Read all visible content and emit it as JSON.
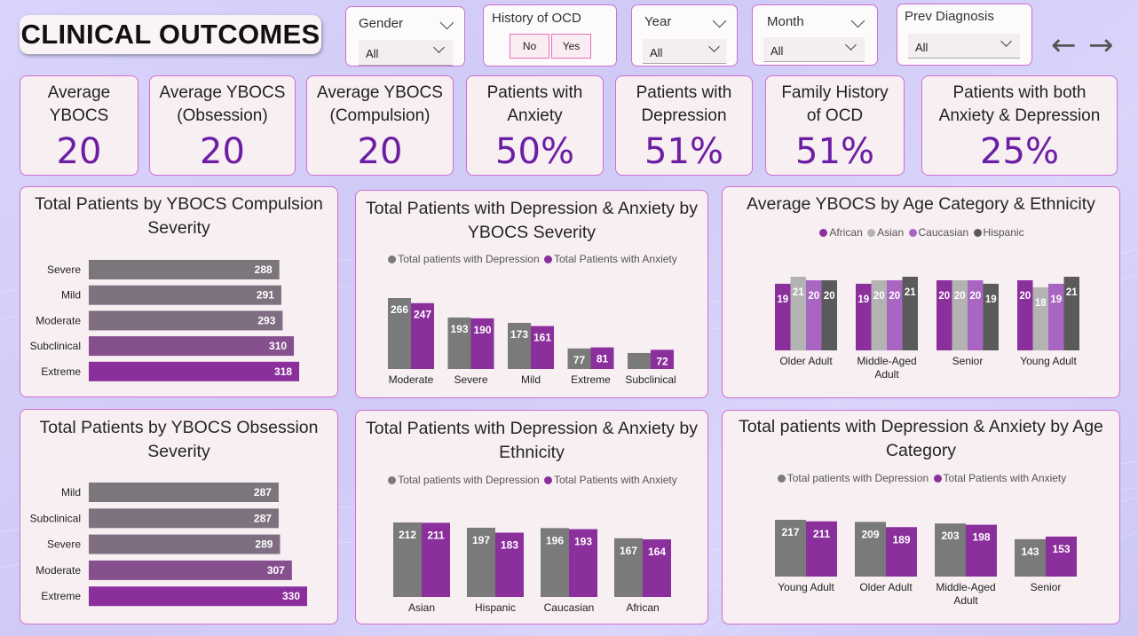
{
  "title": "CLINICAL OUTCOMES",
  "slicers": {
    "gender": {
      "label": "Gender",
      "value": "All"
    },
    "history_ocd": {
      "label": "History of OCD",
      "options": [
        "No",
        "Yes"
      ]
    },
    "year": {
      "label": "Year",
      "value": "All"
    },
    "month": {
      "label": "Month",
      "value": "All"
    },
    "prev_diagnosis": {
      "label": "Prev Diagnosis",
      "value": "All"
    }
  },
  "nav": {
    "back": "←",
    "forward": "→"
  },
  "kpis": [
    {
      "label": "Average YBOCS",
      "value": "20"
    },
    {
      "label": "Average YBOCS (Obsession)",
      "value": "20"
    },
    {
      "label": "Average YBOCS (Compulsion)",
      "value": "20"
    },
    {
      "label": "Patients with Anxiety",
      "value": "50%"
    },
    {
      "label": "Patients with Depression",
      "value": "51%"
    },
    {
      "label": "Family History of OCD",
      "value": "51%"
    },
    {
      "label": "Patients with both Anxiety & Depression",
      "value": "25%"
    }
  ],
  "colors": {
    "gray": "#7a7a7a",
    "purple": "#8a2f9c",
    "light_gray": "#b3b3b3",
    "light_purple": "#a866c2",
    "dark_gray": "#5a5a5a",
    "kpi": "#6b1ea3"
  },
  "chart_data": [
    {
      "id": "compulsion",
      "type": "bar",
      "orientation": "horizontal",
      "title": "Total Patients by YBOCS Compulsion Severity",
      "categories": [
        "Severe",
        "Mild",
        "Moderate",
        "Subclinical",
        "Extreme"
      ],
      "values": [
        288,
        291,
        293,
        310,
        318
      ]
    },
    {
      "id": "obsession",
      "type": "bar",
      "orientation": "horizontal",
      "title": "Total Patients by YBOCS Obsession Severity",
      "categories": [
        "Mild",
        "Subclinical",
        "Severe",
        "Moderate",
        "Extreme"
      ],
      "values": [
        287,
        287,
        289,
        307,
        330
      ]
    },
    {
      "id": "dep_anx_severity",
      "type": "bar",
      "title": "Total Patients with Depression & Anxiety by YBOCS Severity",
      "categories": [
        "Moderate",
        "Severe",
        "Mild",
        "Extreme",
        "Subclinical"
      ],
      "series": [
        {
          "name": "Total patients with Depression",
          "values": [
            266,
            193,
            173,
            77,
            null
          ]
        },
        {
          "name": "Total Patients with Anxiety",
          "values": [
            247,
            190,
            161,
            81,
            72
          ]
        }
      ]
    },
    {
      "id": "dep_anx_ethnicity",
      "type": "bar",
      "title": "Total Patients with Depression & Anxiety by Ethnicity",
      "categories": [
        "Asian",
        "Hispanic",
        "Caucasian",
        "African"
      ],
      "series": [
        {
          "name": "Total patients with Depression",
          "values": [
            212,
            197,
            196,
            167
          ]
        },
        {
          "name": "Total Patients with Anxiety",
          "values": [
            211,
            183,
            193,
            164
          ]
        }
      ]
    },
    {
      "id": "ybocs_age_ethnicity",
      "type": "bar",
      "title": "Average YBOCS by Age Category & Ethnicity",
      "categories": [
        "Older Adult",
        "Middle-Aged Adult",
        "Senior",
        "Young Adult"
      ],
      "series": [
        {
          "name": "African",
          "values": [
            19,
            19,
            20,
            20
          ]
        },
        {
          "name": "Asian",
          "values": [
            21,
            20,
            20,
            18
          ]
        },
        {
          "name": "Caucasian",
          "values": [
            20,
            20,
            20,
            19
          ]
        },
        {
          "name": "Hispanic",
          "values": [
            20,
            21,
            19,
            21
          ]
        }
      ]
    },
    {
      "id": "dep_anx_age",
      "type": "bar",
      "title": "Total patients with Depression & Anxiety by Age Category",
      "categories": [
        "Young Adult",
        "Older Adult",
        "Middle-Aged Adult",
        "Senior"
      ],
      "series": [
        {
          "name": "Total patients with Depression",
          "values": [
            217,
            209,
            203,
            143
          ]
        },
        {
          "name": "Total Patients with Anxiety",
          "values": [
            211,
            189,
            198,
            153
          ]
        }
      ]
    }
  ]
}
